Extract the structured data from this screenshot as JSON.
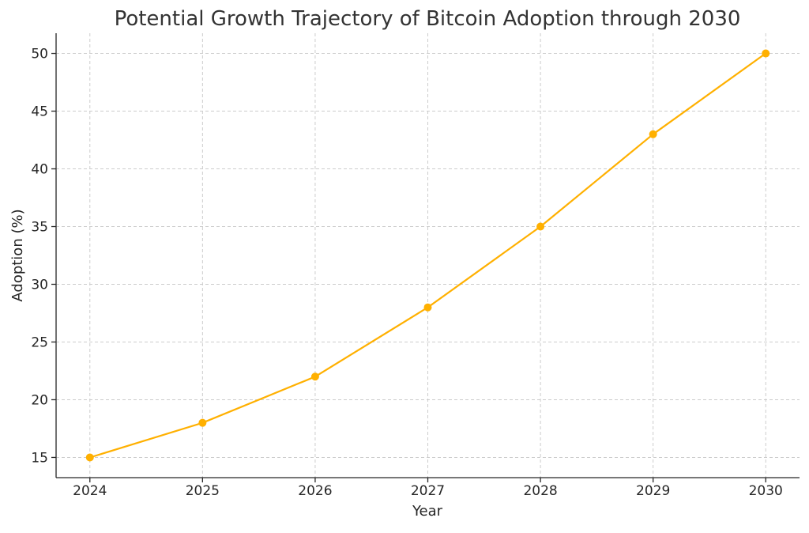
{
  "chart_data": {
    "type": "line",
    "title": "Potential Growth Trajectory of Bitcoin Adoption through 2030",
    "xlabel": "Year",
    "ylabel": "Adoption (%)",
    "x": [
      2024,
      2025,
      2026,
      2027,
      2028,
      2029,
      2030
    ],
    "x_tick_labels": [
      "2024",
      "2025",
      "2026",
      "2027",
      "2028",
      "2029",
      "2030"
    ],
    "y_ticks": [
      15,
      20,
      25,
      30,
      35,
      40,
      45,
      50
    ],
    "y_tick_labels": [
      "15",
      "20",
      "25",
      "30",
      "35",
      "40",
      "45",
      "50"
    ],
    "series": [
      {
        "values": [
          15,
          18,
          22,
          28,
          35,
          43,
          50
        ],
        "color": "#FFB000",
        "marker": "circle"
      }
    ],
    "xlim": [
      2023.7,
      2030.3
    ],
    "ylim": [
      13.25,
      51.75
    ],
    "grid": true,
    "legend": "none",
    "colors": {
      "line": "#FFB000",
      "grid": "#cccccc",
      "axis": "#262626"
    }
  }
}
